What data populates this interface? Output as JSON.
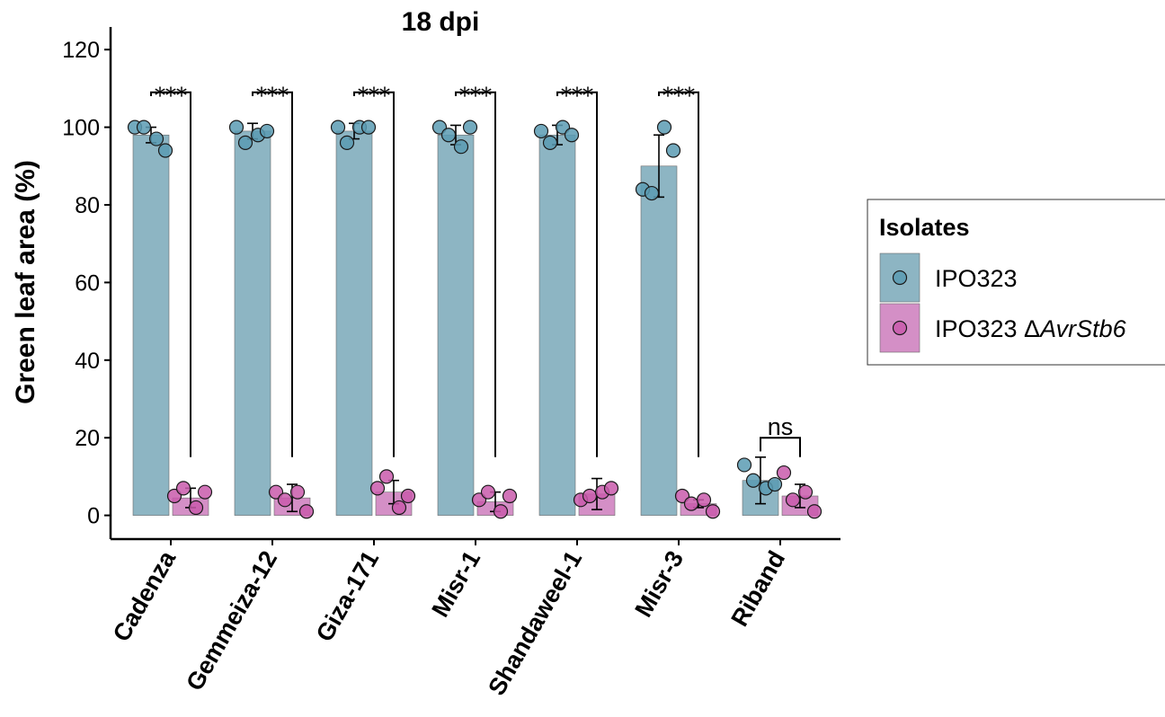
{
  "chart_data": {
    "type": "bar",
    "title": "18 dpi",
    "xlabel": "",
    "ylabel": "Green leaf area (%)",
    "ylim": [
      -6,
      124
    ],
    "yticks": [
      0,
      20,
      40,
      60,
      80,
      100,
      120
    ],
    "grid": false,
    "legend_position": "right",
    "categories": [
      "Cadenza",
      "Gemmeiza-12",
      "Giza-171",
      "Misr-1",
      "Shandaweel-1",
      "Misr-3",
      "Riband"
    ],
    "series": [
      {
        "name": "IPO323",
        "color": "#8db5c3",
        "point_color": "#5b9bb3",
        "values": [
          98,
          99,
          99,
          98,
          98,
          90,
          9
        ],
        "error": [
          2,
          2,
          2,
          2.5,
          2.5,
          8,
          6
        ],
        "points": [
          [
            100,
            100,
            97,
            94
          ],
          [
            100,
            96,
            98,
            99
          ],
          [
            100,
            96,
            100,
            100
          ],
          [
            100,
            98,
            95,
            100
          ],
          [
            99,
            96,
            100,
            98
          ],
          [
            84,
            83,
            100,
            94
          ],
          [
            13,
            9,
            7,
            8
          ]
        ]
      },
      {
        "name": "IPO323 ΔAvrStb6",
        "legend_prefix": "IPO323 Δ",
        "legend_italic": "AvrStb6",
        "color": "#d48fc6",
        "point_color": "#c95aac",
        "values": [
          4.5,
          4.5,
          6,
          3.5,
          5.5,
          3,
          5
        ],
        "error": [
          2.5,
          3.5,
          3,
          2.5,
          4,
          1,
          3
        ],
        "points": [
          [
            5,
            7,
            2,
            6
          ],
          [
            6,
            4,
            6,
            1
          ],
          [
            7,
            10,
            2,
            5
          ],
          [
            4,
            6,
            1,
            5
          ],
          [
            4,
            5,
            6,
            7
          ],
          [
            5,
            3,
            4,
            1
          ],
          [
            11,
            4,
            6,
            1
          ]
        ]
      }
    ],
    "significance": [
      "***",
      "***",
      "***",
      "***",
      "***",
      "***",
      "ns"
    ]
  },
  "legend": {
    "title": "Isolates"
  }
}
